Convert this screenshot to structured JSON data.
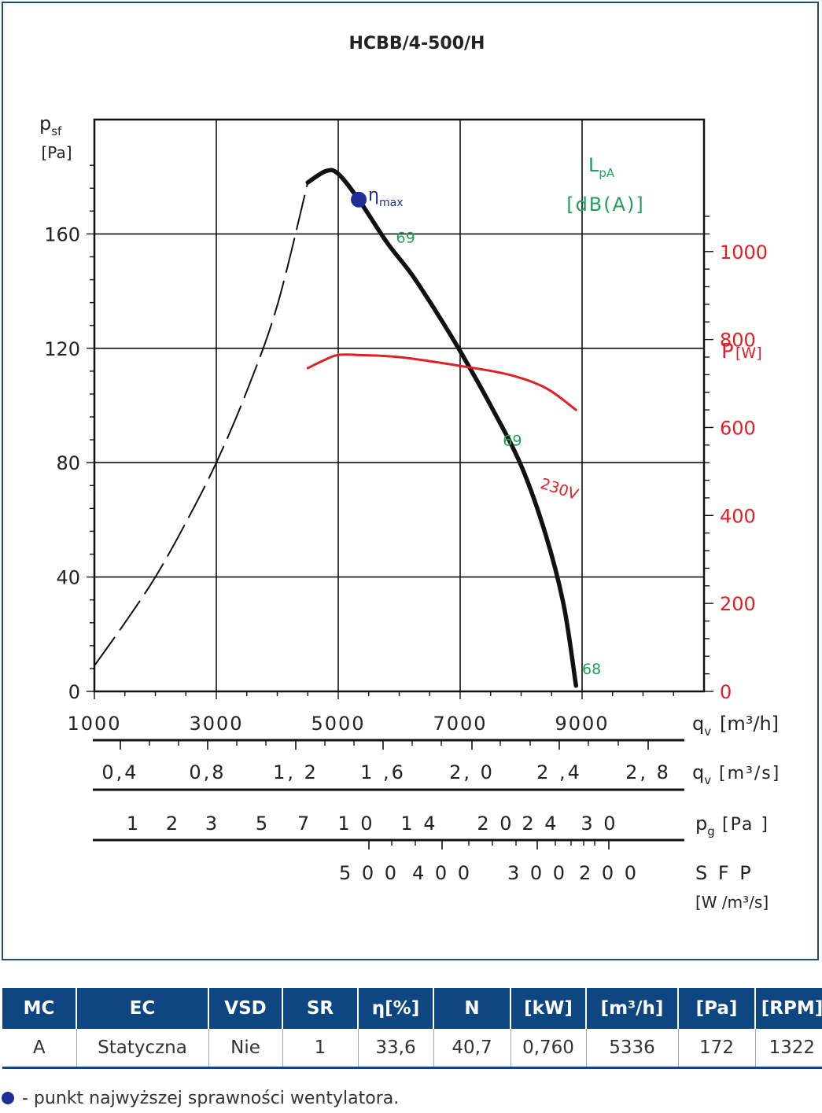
{
  "chart_data": {
    "type": "line",
    "title": "HCBB/4-500/H",
    "left_axis": {
      "label": "p",
      "sub": "sf",
      "unit": "[Pa]",
      "ylim": [
        0,
        200
      ],
      "ticks": [
        0,
        40,
        80,
        120,
        160
      ],
      "tick_labels": [
        "0",
        "40",
        "80",
        "120",
        "160"
      ]
    },
    "right_axis": {
      "label": "P",
      "unit": "[W]",
      "ylim": [
        0,
        1300
      ],
      "ticks": [
        0,
        200,
        400,
        600,
        800,
        1000
      ],
      "tick_labels": [
        "0",
        "200",
        "400",
        "600",
        "800",
        "1000"
      ],
      "color": "#e02027"
    },
    "x_axis": {
      "xlim": [
        1000,
        11000
      ],
      "ticks": [
        1000,
        3000,
        5000,
        7000,
        9000
      ],
      "tick_labels": [
        "1000",
        "3000",
        "5000",
        "7000",
        "9000"
      ],
      "label": "q",
      "sub": "v",
      "unit": "[m³/h]"
    },
    "grid": true,
    "noise_label": {
      "l": "L",
      "sub": "pA",
      "unit": "[dB(A)]",
      "color": "#22a05a"
    },
    "series": [
      {
        "style": "dashed",
        "color": "#111111",
        "x": [
          1000,
          1500,
          2000,
          2500,
          3000,
          3500,
          4000,
          4500
        ],
        "y": [
          9,
          24,
          40,
          59,
          80,
          105,
          135,
          178
        ]
      },
      {
        "style": "solid",
        "color": "#111111",
        "x": [
          4500,
          4800,
          5000,
          5336,
          5800,
          6200,
          6600,
          7000,
          7500,
          8000,
          8400,
          8700,
          8900
        ],
        "y": [
          178,
          182,
          181,
          172,
          157,
          146,
          133,
          119,
          100,
          79,
          55,
          30,
          2
        ]
      },
      {
        "name": "230V",
        "style": "solid",
        "color": "#e02027",
        "axis": "right",
        "x": [
          4500,
          4800,
          5000,
          5300,
          6000,
          7000,
          7800,
          8400,
          8900
        ],
        "y": [
          735,
          755,
          765,
          765,
          760,
          740,
          720,
          690,
          640
        ]
      }
    ],
    "annotations": [
      {
        "text": "69",
        "x": 5950,
        "y": 157,
        "color": "#22a05a"
      },
      {
        "text": "69",
        "x": 7700,
        "y": 86,
        "color": "#22a05a"
      },
      {
        "text": "68",
        "x": 9000,
        "y": 6,
        "color": "#22a05a"
      },
      {
        "text": "230V",
        "x": 8300,
        "y": 69,
        "color": "#e02027"
      }
    ],
    "eta_max": {
      "x": 5336,
      "y": 172,
      "label": "η",
      "sub": "max",
      "color": "#1f2f9a"
    },
    "scales": [
      {
        "label": "q",
        "sub": "v",
        "unit": "[m³/s]",
        "ticks": [
          "0,4",
          "0,8",
          "1, 2",
          "1 ,6",
          "2, 0",
          "2 ,4",
          "2, 8"
        ],
        "values": [
          0.4,
          0.8,
          1.2,
          1.6,
          2.0,
          2.4,
          2.8
        ]
      },
      {
        "label": "p",
        "sub": "g",
        "unit": "[Pa ]",
        "ticks": [
          "1",
          "2",
          "3",
          "5",
          "7",
          "1 0",
          "1 4",
          "2 0",
          "2 4",
          "3 0"
        ],
        "values": [
          1,
          2,
          3,
          5,
          7,
          10,
          14,
          20,
          24,
          30
        ]
      },
      {
        "label": "S F P",
        "unit": "[W /m³/s]",
        "ticks": [
          "5 0 0",
          "4 0 0",
          "3 0 0",
          "2 0 0"
        ],
        "values": [
          500,
          400,
          300,
          200
        ]
      }
    ]
  },
  "table": {
    "headers": [
      "MC",
      "EC",
      "VSD",
      "SR",
      "η[%]",
      "N",
      "[kW]",
      "[m³/h]",
      "[Pa]",
      "[RPM]"
    ],
    "row": [
      "A",
      "Statyczna",
      "Nie",
      "1",
      "33,6",
      "40,7",
      "0,760",
      "5336",
      "172",
      "1322"
    ]
  },
  "footnote": "- punkt najwyższej sprawności wentylatora."
}
